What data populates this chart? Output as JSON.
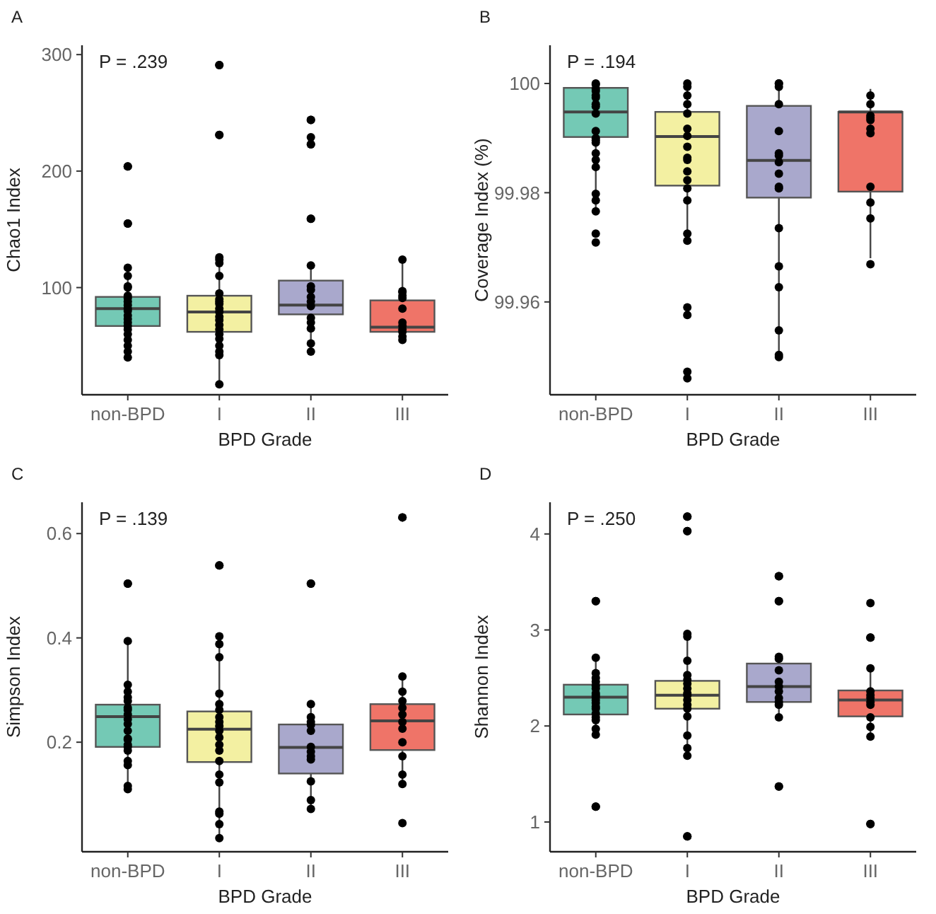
{
  "chart_data": [
    {
      "type": "box",
      "title": "A",
      "xlabel": "BPD Grade",
      "ylabel": "Chao1 Index",
      "annotations": [
        "P = .239"
      ],
      "categories": [
        "non-BPD",
        "I",
        "II",
        "III"
      ],
      "colors": [
        "#74c9b5",
        "#f3f0a2",
        "#a9a8cc",
        "#ef7468"
      ],
      "ylim": [
        8,
        308
      ],
      "yticks": [
        100,
        200,
        300
      ],
      "boxes": [
        {
          "low": 40,
          "q1": 67,
          "median": 82,
          "q3": 92,
          "high": 117
        },
        {
          "low": 17,
          "q1": 62,
          "median": 79,
          "q3": 93,
          "high": 121
        },
        {
          "low": 45,
          "q1": 77,
          "median": 85,
          "q3": 106,
          "high": 119
        },
        {
          "low": 55,
          "q1": 62,
          "median": 66,
          "q3": 89,
          "high": 124
        }
      ],
      "series": [
        {
          "type": "scatter",
          "color": "#000000",
          "x": [
            "non-BPD",
            "non-BPD",
            "non-BPD",
            "non-BPD",
            "non-BPD",
            "non-BPD",
            "non-BPD",
            "non-BPD",
            "non-BPD",
            "non-BPD",
            "non-BPD",
            "non-BPD",
            "non-BPD",
            "non-BPD",
            "non-BPD",
            "non-BPD",
            "non-BPD",
            "non-BPD",
            "non-BPD",
            "non-BPD",
            "non-BPD",
            "non-BPD",
            "non-BPD",
            "non-BPD",
            "I",
            "I",
            "I",
            "I",
            "I",
            "I",
            "I",
            "I",
            "I",
            "I",
            "I",
            "I",
            "I",
            "I",
            "I",
            "I",
            "I",
            "I",
            "I",
            "I",
            "I",
            "I",
            "I",
            "I",
            "II",
            "II",
            "II",
            "II",
            "II",
            "II",
            "II",
            "II",
            "II",
            "II",
            "II",
            "II",
            "II",
            "II",
            "II",
            "II",
            "II",
            "II",
            "III",
            "III",
            "III",
            "III",
            "III",
            "III",
            "III",
            "III",
            "III",
            "III",
            "III",
            "III"
          ],
          "values": [
            204,
            204,
            155,
            155,
            117,
            110,
            101,
            100,
            93,
            91,
            88,
            85,
            82,
            80,
            76,
            73,
            70,
            67,
            64,
            60,
            55,
            50,
            45,
            40,
            291,
            291,
            231,
            231,
            126,
            124,
            121,
            110,
            95,
            90,
            88,
            86,
            82,
            79,
            75,
            72,
            68,
            64,
            60,
            56,
            50,
            45,
            42,
            17,
            244,
            244,
            229,
            223,
            223,
            159,
            159,
            119,
            101,
            98,
            92,
            88,
            84,
            74,
            70,
            65,
            52,
            45,
            124,
            97,
            96,
            93,
            91,
            82,
            70,
            67,
            64,
            62,
            58,
            55
          ]
        }
      ]
    },
    {
      "type": "box",
      "title": "B",
      "xlabel": "BPD Grade",
      "ylabel": "Coverage Index (%)",
      "annotations": [
        "P = .194"
      ],
      "categories": [
        "non-BPD",
        "I",
        "II",
        "III"
      ],
      "colors": [
        "#74c9b5",
        "#f3f0a2",
        "#a9a8cc",
        "#ef7468"
      ],
      "ylim": [
        99.943,
        100.007
      ],
      "yticks": [
        99.96,
        99.98,
        100
      ],
      "boxes": [
        {
          "low": 99.977,
          "q1": 99.9902,
          "median": 99.9948,
          "q3": 99.9992,
          "high": 100
        },
        {
          "low": 99.9723,
          "q1": 99.9813,
          "median": 99.9903,
          "q3": 99.9948,
          "high": 100
        },
        {
          "low": 99.9503,
          "q1": 99.9791,
          "median": 99.9859,
          "q3": 99.9959,
          "high": 99.999
        },
        {
          "low": 99.968,
          "q1": 99.9802,
          "median": 99.9948,
          "q3": 99.9948,
          "high": 99.999
        }
      ],
      "series": [
        {
          "type": "scatter",
          "color": "#000000",
          "x": [
            "non-BPD",
            "non-BPD",
            "non-BPD",
            "non-BPD",
            "non-BPD",
            "non-BPD",
            "non-BPD",
            "non-BPD",
            "non-BPD",
            "non-BPD",
            "non-BPD",
            "non-BPD",
            "non-BPD",
            "non-BPD",
            "non-BPD",
            "non-BPD",
            "non-BPD",
            "non-BPD",
            "non-BPD",
            "non-BPD",
            "non-BPD",
            "I",
            "I",
            "I",
            "I",
            "I",
            "I",
            "I",
            "I",
            "I",
            "I",
            "I",
            "I",
            "I",
            "I",
            "I",
            "I",
            "I",
            "I",
            "I",
            "I",
            "II",
            "II",
            "II",
            "II",
            "II",
            "II",
            "II",
            "II",
            "II",
            "II",
            "II",
            "II",
            "II",
            "II",
            "II",
            "II",
            "II",
            "III",
            "III",
            "III",
            "III",
            "III",
            "III",
            "III",
            "III",
            "III",
            "III",
            "III"
          ],
          "values": [
            100,
            99.9998,
            99.999,
            99.9986,
            99.9978,
            99.9974,
            99.9962,
            99.9958,
            99.9945,
            99.9913,
            99.99,
            99.9896,
            99.9892,
            99.9872,
            99.986,
            99.9847,
            99.9798,
            99.9786,
            99.9766,
            99.9725,
            99.9709,
            100,
            99.9994,
            99.9978,
            99.9962,
            99.9945,
            99.9917,
            99.9904,
            99.9884,
            99.9864,
            99.986,
            99.9839,
            99.9823,
            99.9808,
            99.9786,
            99.9725,
            99.9712,
            99.959,
            99.9576,
            99.9472,
            99.946,
            100,
            100,
            99.9994,
            99.9962,
            99.9913,
            99.9872,
            99.9868,
            99.9856,
            99.9835,
            99.9811,
            99.9808,
            99.9735,
            99.9665,
            99.9627,
            99.9548,
            99.9503,
            99.9499,
            99.9978,
            99.9962,
            99.9941,
            99.9937,
            99.9933,
            99.9917,
            99.9909,
            99.9811,
            99.9782,
            99.9753,
            99.9669
          ]
        }
      ]
    },
    {
      "type": "box",
      "title": "C",
      "xlabel": "BPD Grade",
      "ylabel": "Simpson Index",
      "annotations": [
        "P = .139"
      ],
      "categories": [
        "non-BPD",
        "I",
        "II",
        "III"
      ],
      "colors": [
        "#74c9b5",
        "#f3f0a2",
        "#a9a8cc",
        "#ef7468"
      ],
      "ylim": [
        -0.01,
        0.66
      ],
      "yticks": [
        0.2,
        0.4,
        0.6
      ],
      "boxes": [
        {
          "low": 0.11,
          "q1": 0.191,
          "median": 0.249,
          "q3": 0.272,
          "high": 0.392
        },
        {
          "low": 0.016,
          "q1": 0.162,
          "median": 0.225,
          "q3": 0.259,
          "high": 0.4
        },
        {
          "low": 0.072,
          "q1": 0.14,
          "median": 0.19,
          "q3": 0.234,
          "high": 0.272
        },
        {
          "low": 0.12,
          "q1": 0.185,
          "median": 0.241,
          "q3": 0.273,
          "high": 0.325
        }
      ],
      "series": [
        {
          "type": "scatter",
          "color": "#000000",
          "x": [
            "non-BPD",
            "non-BPD",
            "non-BPD",
            "non-BPD",
            "non-BPD",
            "non-BPD",
            "non-BPD",
            "non-BPD",
            "non-BPD",
            "non-BPD",
            "non-BPD",
            "non-BPD",
            "non-BPD",
            "non-BPD",
            "non-BPD",
            "non-BPD",
            "non-BPD",
            "non-BPD",
            "non-BPD",
            "non-BPD",
            "non-BPD",
            "non-BPD",
            "I",
            "I",
            "I",
            "I",
            "I",
            "I",
            "I",
            "I",
            "I",
            "I",
            "I",
            "I",
            "I",
            "I",
            "I",
            "I",
            "I",
            "I",
            "I",
            "I",
            "I",
            "I",
            "II",
            "II",
            "II",
            "II",
            "II",
            "II",
            "II",
            "II",
            "II",
            "II",
            "II",
            "II",
            "II",
            "II",
            "III",
            "III",
            "III",
            "III",
            "III",
            "III",
            "III",
            "III",
            "III",
            "III",
            "III",
            "III",
            "III",
            "III"
          ],
          "values": [
            0.504,
            0.504,
            0.394,
            0.31,
            0.297,
            0.286,
            0.279,
            0.266,
            0.262,
            0.253,
            0.244,
            0.235,
            0.222,
            0.207,
            0.205,
            0.195,
            0.191,
            0.184,
            0.164,
            0.156,
            0.116,
            0.11,
            0.539,
            0.539,
            0.403,
            0.388,
            0.363,
            0.293,
            0.273,
            0.262,
            0.248,
            0.239,
            0.231,
            0.222,
            0.209,
            0.195,
            0.184,
            0.164,
            0.138,
            0.123,
            0.067,
            0.063,
            0.043,
            0.016,
            0.504,
            0.504,
            0.273,
            0.248,
            0.239,
            0.233,
            0.222,
            0.191,
            0.182,
            0.173,
            0.167,
            0.125,
            0.089,
            0.072,
            0.631,
            0.631,
            0.326,
            0.297,
            0.279,
            0.266,
            0.253,
            0.239,
            0.226,
            0.2,
            0.173,
            0.138,
            0.12,
            0.045
          ]
        }
      ]
    },
    {
      "type": "box",
      "title": "D",
      "xlabel": "BPD Grade",
      "ylabel": "Shannon Index",
      "annotations": [
        "P = .250"
      ],
      "categories": [
        "non-BPD",
        "I",
        "II",
        "III"
      ],
      "colors": [
        "#74c9b5",
        "#f3f0a2",
        "#a9a8cc",
        "#ef7468"
      ],
      "ylim": [
        0.69,
        4.33
      ],
      "yticks": [
        1,
        2,
        3,
        4
      ],
      "boxes": [
        {
          "low": 1.91,
          "q1": 2.12,
          "median": 2.3,
          "q3": 2.43,
          "high": 2.7
        },
        {
          "low": 1.77,
          "q1": 2.18,
          "median": 2.32,
          "q3": 2.47,
          "high": 2.98
        },
        {
          "low": 2.1,
          "q1": 2.25,
          "median": 2.41,
          "q3": 2.65,
          "high": 2.73
        },
        {
          "low": 1.89,
          "q1": 2.1,
          "median": 2.27,
          "q3": 2.37,
          "high": 2.6
        }
      ],
      "series": [
        {
          "type": "scatter",
          "color": "#000000",
          "x": [
            "non-BPD",
            "non-BPD",
            "non-BPD",
            "non-BPD",
            "non-BPD",
            "non-BPD",
            "non-BPD",
            "non-BPD",
            "non-BPD",
            "non-BPD",
            "non-BPD",
            "non-BPD",
            "non-BPD",
            "non-BPD",
            "non-BPD",
            "non-BPD",
            "non-BPD",
            "non-BPD",
            "non-BPD",
            "non-BPD",
            "non-BPD",
            "non-BPD",
            "I",
            "I",
            "I",
            "I",
            "I",
            "I",
            "I",
            "I",
            "I",
            "I",
            "I",
            "I",
            "I",
            "I",
            "I",
            "I",
            "I",
            "I",
            "I",
            "I",
            "I",
            "I",
            "II",
            "II",
            "II",
            "II",
            "II",
            "II",
            "II",
            "II",
            "II",
            "II",
            "II",
            "II",
            "II",
            "II",
            "II",
            "II",
            "III",
            "III",
            "III",
            "III",
            "III",
            "III",
            "III",
            "III",
            "III",
            "III",
            "III",
            "III",
            "III",
            "III"
          ],
          "values": [
            3.3,
            3.3,
            2.71,
            2.55,
            2.5,
            2.46,
            2.42,
            2.39,
            2.34,
            2.32,
            2.3,
            2.27,
            2.24,
            2.2,
            2.18,
            2.13,
            2.09,
            2.06,
            1.97,
            1.91,
            1.16,
            1.16,
            4.18,
            4.18,
            4.03,
            4.03,
            2.96,
            2.93,
            2.68,
            2.53,
            2.48,
            2.44,
            2.39,
            2.34,
            2.32,
            2.27,
            2.22,
            2.18,
            2.1,
            1.9,
            1.77,
            1.69,
            0.85,
            0.85,
            3.56,
            3.56,
            3.3,
            3.3,
            2.72,
            2.7,
            2.58,
            2.46,
            2.41,
            2.36,
            2.29,
            2.25,
            2.22,
            2.09,
            1.37,
            1.37,
            3.28,
            2.92,
            2.92,
            2.6,
            2.36,
            2.32,
            2.29,
            2.25,
            2.22,
            2.09,
            1.99,
            1.89,
            0.98,
            0.98
          ]
        }
      ]
    }
  ]
}
